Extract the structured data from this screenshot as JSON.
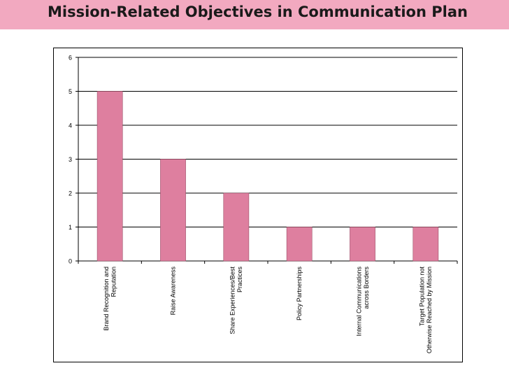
{
  "slide": {
    "title": "Mission-Related Objectives in Communication Plan"
  },
  "chart_data": {
    "type": "bar",
    "title": "",
    "xlabel": "",
    "ylabel": "",
    "categories": [
      [
        "Brand Recognition and",
        "Reputation"
      ],
      [
        "Raise Awareness"
      ],
      [
        "Share Experiences/Best",
        "Practices"
      ],
      [
        "Policy Partnerships"
      ],
      [
        "Internal Communications",
        "across Borders"
      ],
      [
        "Target Population not",
        "Otherwise Reached by Mission"
      ]
    ],
    "values": [
      5,
      3,
      2,
      1,
      1,
      1
    ],
    "ylim": [
      0,
      6
    ],
    "yticks": [
      0,
      1,
      2,
      3,
      4,
      5,
      6
    ],
    "grid": true,
    "legend": "none",
    "colors": {
      "bar": "#de7f9f",
      "bar_stroke": "#9a4d66",
      "title_band": "#f2a9c0"
    }
  }
}
